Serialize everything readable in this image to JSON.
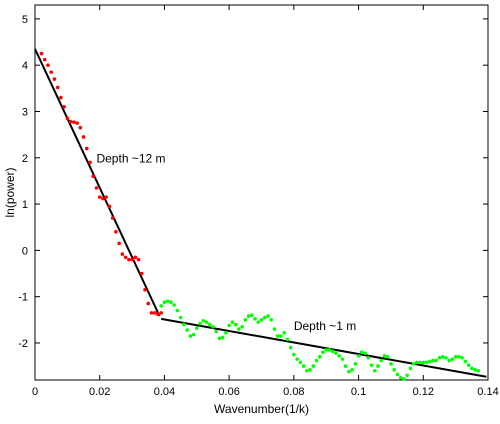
{
  "chart_data": {
    "type": "scatter",
    "xlabel": "Wavenumber(1/k)",
    "ylabel": "ln(power)",
    "xlim": [
      0,
      0.14
    ],
    "ylim": [
      -2.8,
      5.3
    ],
    "xticks": [
      0,
      0.02,
      0.04,
      0.06,
      0.08,
      0.1,
      0.12,
      0.14
    ],
    "xtick_labels": [
      "0",
      "0.02",
      "0.04",
      "0.06",
      "0.08",
      "0.1",
      "0.12",
      "0.14"
    ],
    "yticks": [
      -2,
      -1,
      0,
      1,
      2,
      3,
      4,
      5
    ],
    "ytick_labels": [
      "-2",
      "-1",
      "0",
      "1",
      "2",
      "3",
      "4",
      "5"
    ],
    "grid": false,
    "series": [
      {
        "color": "#ff0000",
        "points": [
          [
            0.002,
            4.25
          ],
          [
            0.003,
            4.12
          ],
          [
            0.004,
            4.0
          ],
          [
            0.005,
            3.85
          ],
          [
            0.006,
            3.7
          ],
          [
            0.007,
            3.52
          ],
          [
            0.008,
            3.3
          ],
          [
            0.009,
            3.1
          ],
          [
            0.01,
            2.85
          ],
          [
            0.011,
            2.78
          ],
          [
            0.012,
            2.77
          ],
          [
            0.013,
            2.75
          ],
          [
            0.014,
            2.65
          ],
          [
            0.015,
            2.45
          ],
          [
            0.016,
            2.2
          ],
          [
            0.017,
            1.9
          ],
          [
            0.018,
            1.6
          ],
          [
            0.019,
            1.35
          ],
          [
            0.02,
            1.15
          ],
          [
            0.021,
            1.12
          ],
          [
            0.022,
            1.15
          ],
          [
            0.023,
            0.95
          ],
          [
            0.024,
            0.7
          ],
          [
            0.025,
            0.4
          ],
          [
            0.026,
            0.15
          ],
          [
            0.027,
            -0.08
          ],
          [
            0.028,
            -0.15
          ],
          [
            0.029,
            -0.2
          ],
          [
            0.03,
            -0.2
          ],
          [
            0.031,
            -0.15
          ],
          [
            0.032,
            -0.2
          ],
          [
            0.033,
            -0.5
          ],
          [
            0.034,
            -0.85
          ],
          [
            0.035,
            -1.15
          ],
          [
            0.036,
            -1.35
          ],
          [
            0.037,
            -1.35
          ],
          [
            0.038,
            -1.38
          ],
          [
            0.039,
            -1.35
          ]
        ]
      },
      {
        "color": "#00ff00",
        "points": [
          [
            0.039,
            -1.2
          ],
          [
            0.04,
            -1.12
          ],
          [
            0.041,
            -1.1
          ],
          [
            0.042,
            -1.12
          ],
          [
            0.043,
            -1.18
          ],
          [
            0.044,
            -1.3
          ],
          [
            0.045,
            -1.45
          ],
          [
            0.046,
            -1.6
          ],
          [
            0.047,
            -1.72
          ],
          [
            0.048,
            -1.85
          ],
          [
            0.049,
            -1.82
          ],
          [
            0.05,
            -1.68
          ],
          [
            0.051,
            -1.58
          ],
          [
            0.052,
            -1.52
          ],
          [
            0.053,
            -1.55
          ],
          [
            0.054,
            -1.6
          ],
          [
            0.055,
            -1.65
          ],
          [
            0.056,
            -1.75
          ],
          [
            0.057,
            -1.9
          ],
          [
            0.058,
            -1.88
          ],
          [
            0.059,
            -1.78
          ],
          [
            0.06,
            -1.62
          ],
          [
            0.061,
            -1.55
          ],
          [
            0.062,
            -1.6
          ],
          [
            0.063,
            -1.7
          ],
          [
            0.064,
            -1.65
          ],
          [
            0.065,
            -1.5
          ],
          [
            0.066,
            -1.42
          ],
          [
            0.067,
            -1.4
          ],
          [
            0.068,
            -1.48
          ],
          [
            0.069,
            -1.55
          ],
          [
            0.07,
            -1.5
          ],
          [
            0.071,
            -1.45
          ],
          [
            0.072,
            -1.42
          ],
          [
            0.073,
            -1.5
          ],
          [
            0.074,
            -1.7
          ],
          [
            0.075,
            -1.85
          ],
          [
            0.076,
            -1.85
          ],
          [
            0.077,
            -1.78
          ],
          [
            0.078,
            -1.92
          ],
          [
            0.079,
            -2.1
          ],
          [
            0.08,
            -2.25
          ],
          [
            0.081,
            -2.35
          ],
          [
            0.082,
            -2.42
          ],
          [
            0.083,
            -2.5
          ],
          [
            0.084,
            -2.6
          ],
          [
            0.085,
            -2.58
          ],
          [
            0.086,
            -2.5
          ],
          [
            0.087,
            -2.38
          ],
          [
            0.088,
            -2.3
          ],
          [
            0.089,
            -2.2
          ],
          [
            0.09,
            -2.15
          ],
          [
            0.091,
            -2.15
          ],
          [
            0.092,
            -2.18
          ],
          [
            0.093,
            -2.22
          ],
          [
            0.094,
            -2.28
          ],
          [
            0.095,
            -2.35
          ],
          [
            0.096,
            -2.5
          ],
          [
            0.097,
            -2.62
          ],
          [
            0.098,
            -2.58
          ],
          [
            0.099,
            -2.45
          ],
          [
            0.1,
            -2.28
          ],
          [
            0.101,
            -2.2
          ],
          [
            0.102,
            -2.22
          ],
          [
            0.103,
            -2.32
          ],
          [
            0.104,
            -2.48
          ],
          [
            0.105,
            -2.6
          ],
          [
            0.106,
            -2.5
          ],
          [
            0.107,
            -2.38
          ],
          [
            0.108,
            -2.28
          ],
          [
            0.109,
            -2.3
          ],
          [
            0.11,
            -2.45
          ],
          [
            0.111,
            -2.58
          ],
          [
            0.112,
            -2.68
          ],
          [
            0.113,
            -2.75
          ],
          [
            0.114,
            -2.78
          ],
          [
            0.115,
            -2.7
          ],
          [
            0.116,
            -2.55
          ],
          [
            0.117,
            -2.45
          ],
          [
            0.118,
            -2.42
          ],
          [
            0.119,
            -2.42
          ],
          [
            0.12,
            -2.42
          ],
          [
            0.121,
            -2.42
          ],
          [
            0.122,
            -2.4
          ],
          [
            0.123,
            -2.38
          ],
          [
            0.124,
            -2.38
          ],
          [
            0.125,
            -2.32
          ],
          [
            0.126,
            -2.3
          ],
          [
            0.127,
            -2.32
          ],
          [
            0.128,
            -2.38
          ],
          [
            0.129,
            -2.35
          ],
          [
            0.13,
            -2.3
          ],
          [
            0.131,
            -2.3
          ],
          [
            0.132,
            -2.32
          ],
          [
            0.133,
            -2.4
          ],
          [
            0.134,
            -2.48
          ],
          [
            0.135,
            -2.55
          ],
          [
            0.136,
            -2.58
          ],
          [
            0.137,
            -2.6
          ]
        ]
      }
    ],
    "fit_lines": [
      {
        "from": [
          0.0,
          4.35
        ],
        "to": [
          0.0385,
          -1.42
        ],
        "color": "#000000"
      },
      {
        "from": [
          0.039,
          -1.48
        ],
        "to": [
          0.1395,
          -2.73
        ],
        "color": "#000000"
      }
    ],
    "annotations": [
      {
        "text": "Depth ~12 m",
        "x": 0.019,
        "y": 1.9
      },
      {
        "text": "Depth ~1 m",
        "x": 0.08,
        "y": -1.72
      }
    ]
  }
}
